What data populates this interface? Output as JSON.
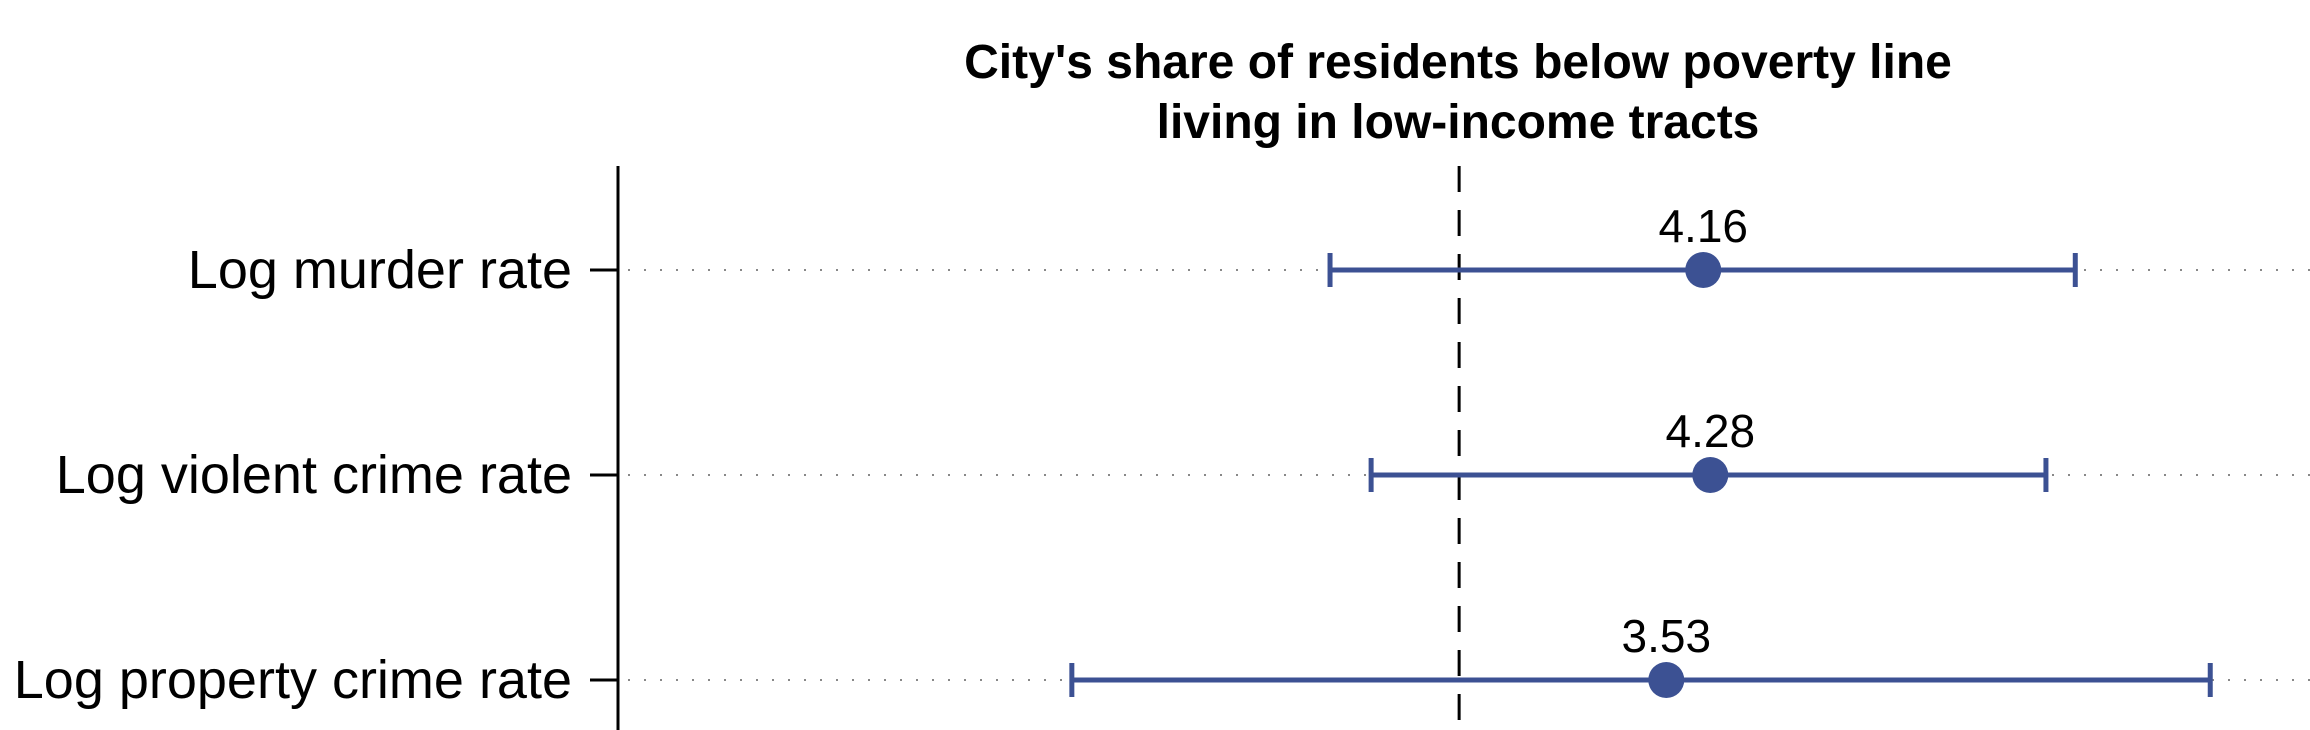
{
  "chart_data": {
    "type": "coefficient-plot",
    "title_lines": [
      "City's share of residents below poverty line",
      "living in low-income tracts"
    ],
    "categories": [
      "Log murder rate",
      "Log violent crime rate",
      "Log property crime rate"
    ],
    "series": [
      {
        "estimates": [
          4.16,
          4.28,
          3.53
        ],
        "ci_low": [
          -2.2,
          -1.5,
          -6.6
        ],
        "ci_high": [
          10.5,
          10.0,
          12.8
        ],
        "labels": [
          "4.16",
          "4.28",
          "3.53"
        ]
      }
    ],
    "reference_line": 0,
    "xlim": [
      -14.3,
      14.5
    ],
    "grid": "dotted horizontal at each category",
    "colors": {
      "marker": "#3C5193",
      "reference_line": "#000000",
      "axis": "#000000",
      "grid": "#888888"
    }
  }
}
